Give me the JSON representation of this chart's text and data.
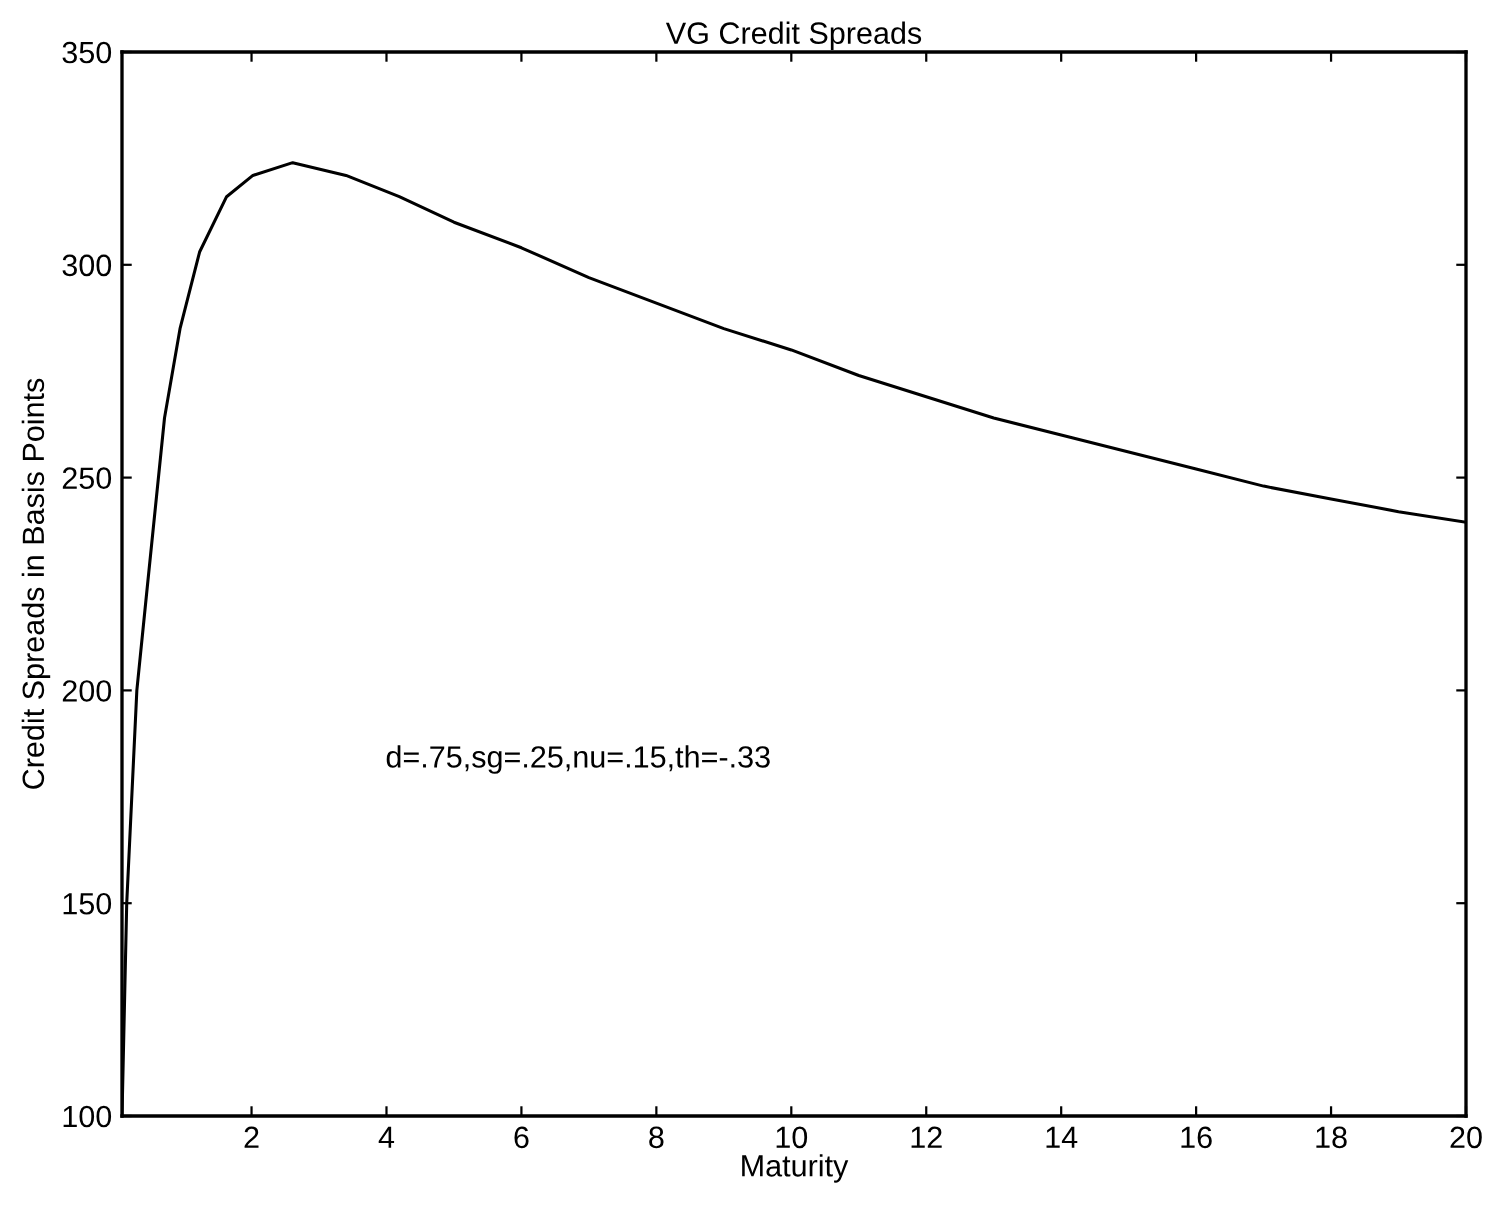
{
  "chart_data": {
    "type": "line",
    "title": "VG Credit Spreads",
    "xlabel": "Maturity",
    "ylabel": "Credit Spreads in Basis Points",
    "annotations": [
      "d=.75,sg=.25,nu=.15,th=-.33"
    ],
    "x": [
      0.08,
      0.15,
      0.3,
      0.44,
      0.71,
      0.94,
      1.23,
      1.63,
      2.02,
      2.61,
      3.4,
      4.19,
      5,
      6,
      7,
      8,
      9,
      10,
      11,
      12,
      13,
      14,
      15,
      16,
      17,
      18,
      19,
      20
    ],
    "series": [
      {
        "color": "#000000",
        "values": [
          100,
          150,
          200,
          222,
          264,
          285,
          303,
          316,
          321,
          324,
          321,
          316,
          310,
          304,
          297,
          291,
          285,
          280,
          274,
          269,
          264,
          260,
          256,
          252,
          248,
          245,
          242,
          239.5
        ]
      }
    ],
    "xlim": [
      0.08,
      20
    ],
    "ylim": [
      100,
      350
    ],
    "xticks": [
      2,
      4,
      6,
      8,
      10,
      12,
      14,
      16,
      18,
      20
    ],
    "yticks": [
      100,
      150,
      200,
      250,
      300,
      350
    ],
    "grid": false,
    "legend": false,
    "marker": "none",
    "line_style": "solid"
  }
}
